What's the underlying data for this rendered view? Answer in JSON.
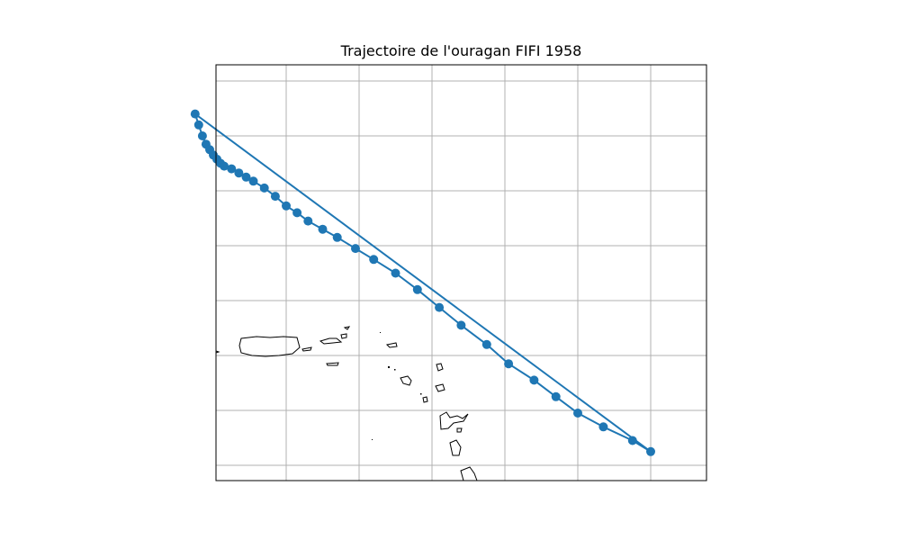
{
  "title": "Trajectoire de l'ouragan FIFI 1958",
  "colors": {
    "track": "#1f77b4",
    "coast": "#000000",
    "grid": "#b0b0b0",
    "frame": "#000000"
  },
  "map": {
    "projection": "lon-lat",
    "grid": true,
    "lon_lines": [
      -66,
      -64,
      -62,
      -60,
      -58,
      -56
    ],
    "lat_lines": [
      14,
      16,
      18,
      20,
      22,
      24,
      26,
      28
    ]
  },
  "chart_data": {
    "type": "line",
    "series": [
      {
        "points": [
          [
            -68.5,
            26.8
          ],
          [
            -68.4,
            26.4
          ],
          [
            -68.3,
            26.0
          ],
          [
            -68.2,
            25.7
          ],
          [
            -68.1,
            25.5
          ],
          [
            -68.0,
            25.3
          ],
          [
            -67.9,
            25.15
          ],
          [
            -67.8,
            25.0
          ],
          [
            -67.7,
            24.9
          ],
          [
            -67.5,
            24.8
          ],
          [
            -67.3,
            24.65
          ],
          [
            -67.1,
            24.5
          ],
          [
            -66.9,
            24.35
          ],
          [
            -66.6,
            24.1
          ],
          [
            -66.3,
            23.8
          ],
          [
            -66.0,
            23.45
          ],
          [
            -65.7,
            23.2
          ],
          [
            -65.4,
            22.9
          ],
          [
            -65.0,
            22.6
          ],
          [
            -64.6,
            22.3
          ],
          [
            -64.1,
            21.9
          ],
          [
            -63.6,
            21.5
          ],
          [
            -63.0,
            21.0
          ],
          [
            -62.4,
            20.4
          ],
          [
            -61.8,
            19.75
          ],
          [
            -61.2,
            19.1
          ],
          [
            -60.5,
            18.4
          ],
          [
            -59.9,
            17.7
          ],
          [
            -59.2,
            17.1
          ],
          [
            -58.6,
            16.5
          ],
          [
            -58.0,
            15.9
          ],
          [
            -57.3,
            15.4
          ],
          [
            -56.5,
            14.9
          ],
          [
            -56.0,
            14.5
          ],
          [
            -68.5,
            26.8
          ]
        ]
      }
    ]
  }
}
